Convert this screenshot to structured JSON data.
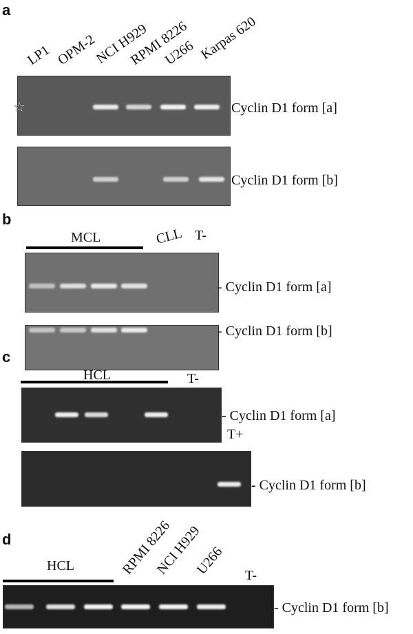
{
  "panels": {
    "a": {
      "label": "a",
      "lanes": [
        "LP1",
        "OPM-2",
        "NCI H929",
        "RPMI 8226",
        "U266",
        "Karpas 620"
      ],
      "star_icon": "star-icon",
      "gel1_label": "Cyclin D1 form [a]",
      "gel2_label": "Cyclin D1 form [b]",
      "gel1_bands": [
        0,
        0,
        0.9,
        0.7,
        1,
        0.95
      ],
      "gel2_bands": [
        0,
        0,
        0.6,
        0,
        0.6,
        0.85
      ]
    },
    "b": {
      "label": "b",
      "group": "MCL",
      "extra_lanes": [
        "CLL",
        "T-"
      ],
      "gel1_label": "- Cyclin D1 form [a]",
      "gel2_label": "- Cyclin D1 form [b]",
      "gel1_bands": [
        0.4,
        0.75,
        0.85,
        0.8,
        0,
        0
      ],
      "gel2_bands": [
        0.45,
        0.5,
        0.8,
        0.9,
        0,
        0
      ]
    },
    "c": {
      "label": "c",
      "group": "HCL",
      "t_minus": "T-",
      "t_plus": "T+",
      "gel1_label": "- Cyclin D1 form [a]",
      "gel2_label": "- Cyclin D1 form [b]",
      "gel1_bands": [
        0,
        0.95,
        0.8,
        0,
        0.95,
        0
      ],
      "gel2_bands": [
        0,
        0,
        0,
        0,
        0,
        0,
        0.95
      ]
    },
    "d": {
      "label": "d",
      "group": "HCL",
      "lanes": [
        "RPMI 8226",
        "NCI H929",
        "U266"
      ],
      "t_minus": "T-",
      "gel_label": "- Cyclin D1 form [b]",
      "gel_bands": [
        0.55,
        0.85,
        1,
        1,
        1,
        0.95,
        0
      ]
    }
  },
  "colors": {
    "gel_a1": "#595959",
    "gel_a2": "#6b6b6b",
    "gel_b": "#6f6f6f",
    "gel_c": "#2f2f2f",
    "gel_d": "#1e1e1e",
    "band": "#f4f4f4"
  }
}
